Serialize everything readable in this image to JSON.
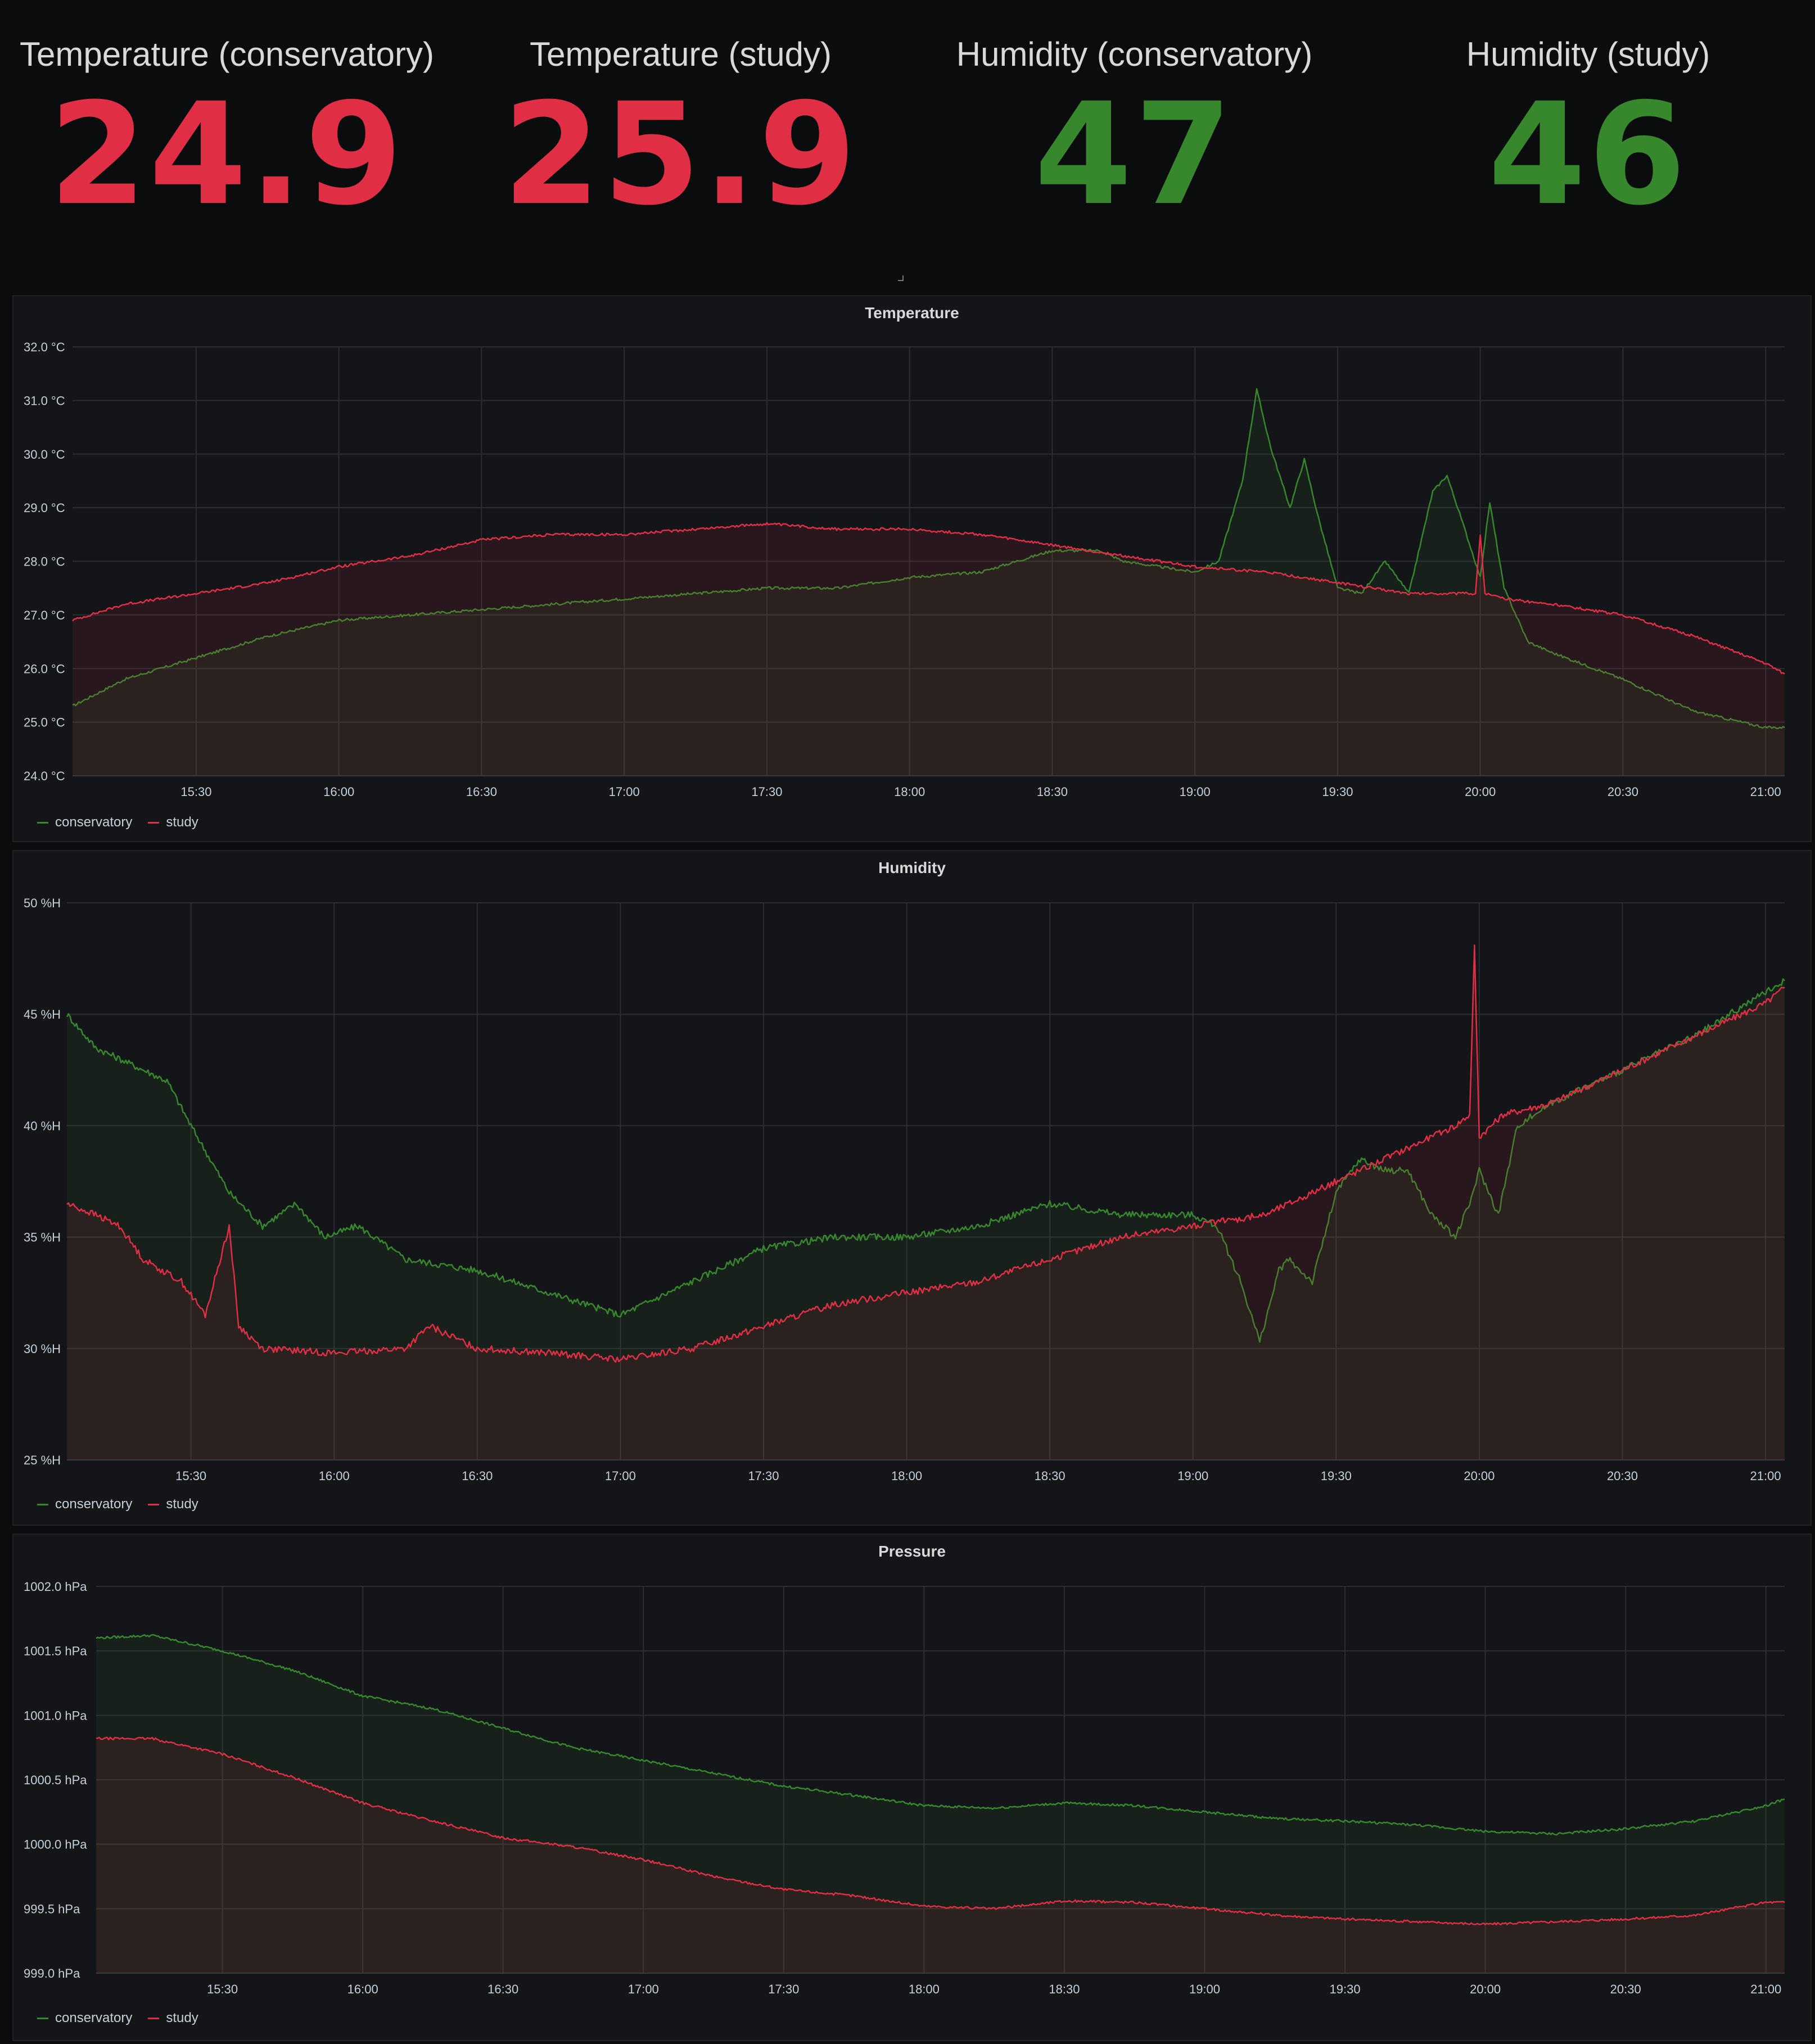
{
  "stats": [
    {
      "title": "Temperature (conservatory)",
      "value": "24.9",
      "color": "#e02f44"
    },
    {
      "title": "Temperature (study)",
      "value": "25.9",
      "color": "#e02f44"
    },
    {
      "title": "Humidity (conservatory)",
      "value": "47",
      "color": "#37872d"
    },
    {
      "title": "Humidity (study)",
      "value": "46",
      "color": "#37872d"
    }
  ],
  "colors": {
    "conservatory": "#37872d",
    "study": "#e02f44"
  },
  "legend": {
    "conservatory": "conservatory",
    "study": "study"
  },
  "chart_data": [
    {
      "type": "area",
      "title": "Temperature",
      "unit": "°C",
      "ylim": [
        24,
        32
      ],
      "yticks": [
        "24.0 °C",
        "25.0 °C",
        "26.0 °C",
        "27.0 °C",
        "28.0 °C",
        "29.0 °C",
        "30.0 °C",
        "31.0 °C",
        "32.0 °C"
      ],
      "xlim": [
        "15:04",
        "21:04"
      ],
      "xticks": [
        "15:30",
        "16:00",
        "16:30",
        "17:00",
        "17:30",
        "18:00",
        "18:30",
        "19:00",
        "19:30",
        "20:00",
        "20:30",
        "21:00"
      ],
      "grid": true,
      "legend_position": "bottom-left",
      "series": [
        {
          "name": "conservatory",
          "color": "#37872d",
          "x": [
            "15:04",
            "15:15",
            "15:30",
            "15:45",
            "16:00",
            "16:15",
            "16:30",
            "16:45",
            "17:00",
            "17:15",
            "17:30",
            "17:45",
            "18:00",
            "18:15",
            "18:30",
            "18:40",
            "18:45",
            "19:00",
            "19:05",
            "19:10",
            "19:13",
            "19:16",
            "19:20",
            "19:23",
            "19:26",
            "19:30",
            "19:35",
            "19:40",
            "19:45",
            "19:50",
            "19:53",
            "19:56",
            "20:00",
            "20:02",
            "20:05",
            "20:10",
            "20:15",
            "20:30",
            "20:45",
            "21:00",
            "21:04"
          ],
          "y": [
            25.3,
            25.8,
            26.2,
            26.6,
            26.9,
            27.0,
            27.1,
            27.2,
            27.3,
            27.4,
            27.5,
            27.5,
            27.7,
            27.8,
            28.2,
            28.2,
            28.0,
            27.8,
            28.0,
            29.5,
            31.2,
            30.1,
            29.0,
            29.9,
            28.8,
            27.5,
            27.4,
            28.0,
            27.4,
            29.3,
            29.6,
            28.8,
            27.7,
            29.1,
            27.5,
            26.5,
            26.3,
            25.8,
            25.2,
            24.9,
            24.9
          ]
        },
        {
          "name": "study",
          "color": "#e02f44",
          "x": [
            "15:04",
            "15:15",
            "15:30",
            "15:45",
            "16:00",
            "16:15",
            "16:30",
            "16:45",
            "17:00",
            "17:15",
            "17:30",
            "17:45",
            "18:00",
            "18:15",
            "18:30",
            "18:45",
            "19:00",
            "19:15",
            "19:30",
            "19:45",
            "19:55",
            "19:59",
            "20:00",
            "20:01",
            "20:05",
            "20:15",
            "20:30",
            "20:45",
            "21:00",
            "21:04"
          ],
          "y": [
            26.9,
            27.2,
            27.4,
            27.6,
            27.9,
            28.1,
            28.4,
            28.5,
            28.5,
            28.6,
            28.7,
            28.6,
            28.6,
            28.5,
            28.3,
            28.1,
            27.9,
            27.8,
            27.6,
            27.4,
            27.4,
            27.4,
            28.5,
            27.4,
            27.3,
            27.2,
            27.0,
            26.6,
            26.1,
            25.9
          ]
        }
      ]
    },
    {
      "type": "area",
      "title": "Humidity",
      "unit": "%H",
      "ylim": [
        25,
        50
      ],
      "yticks": [
        "25 %H",
        "30 %H",
        "35 %H",
        "40 %H",
        "45 %H",
        "50 %H"
      ],
      "xlim": [
        "15:04",
        "21:04"
      ],
      "xticks": [
        "15:30",
        "16:00",
        "16:30",
        "17:00",
        "17:30",
        "18:00",
        "18:30",
        "19:00",
        "19:30",
        "20:00",
        "20:30",
        "21:00"
      ],
      "grid": true,
      "legend_position": "bottom-left",
      "series": [
        {
          "name": "conservatory",
          "color": "#37872d",
          "x": [
            "15:04",
            "15:10",
            "15:15",
            "15:25",
            "15:30",
            "15:38",
            "15:45",
            "15:52",
            "15:58",
            "16:05",
            "16:15",
            "16:30",
            "16:45",
            "17:00",
            "17:10",
            "17:20",
            "17:30",
            "17:45",
            "18:00",
            "18:15",
            "18:30",
            "18:45",
            "19:00",
            "19:05",
            "19:10",
            "19:14",
            "19:18",
            "19:20",
            "19:25",
            "19:30",
            "19:35",
            "19:40",
            "19:45",
            "19:50",
            "19:55",
            "19:58",
            "20:00",
            "20:04",
            "20:08",
            "20:15",
            "20:30",
            "20:45",
            "21:00",
            "21:04"
          ],
          "y": [
            45.0,
            43.5,
            43.0,
            42.0,
            40.0,
            37.0,
            35.5,
            36.5,
            35.0,
            35.5,
            34.0,
            33.5,
            32.5,
            31.5,
            32.5,
            33.5,
            34.5,
            35.0,
            35.0,
            35.5,
            36.5,
            36.0,
            36.0,
            35.5,
            33.0,
            30.3,
            33.5,
            34.0,
            33.0,
            37.0,
            38.5,
            38.0,
            38.0,
            36.0,
            35.0,
            36.5,
            38.0,
            36.0,
            40.0,
            41.0,
            42.5,
            44.0,
            46.0,
            46.5
          ]
        },
        {
          "name": "study",
          "color": "#e02f44",
          "x": [
            "15:04",
            "15:10",
            "15:15",
            "15:20",
            "15:28",
            "15:33",
            "15:38",
            "15:40",
            "15:45",
            "16:00",
            "16:15",
            "16:20",
            "16:30",
            "16:45",
            "17:00",
            "17:15",
            "17:30",
            "17:45",
            "18:00",
            "18:15",
            "18:30",
            "18:45",
            "19:00",
            "19:15",
            "19:30",
            "19:40",
            "19:45",
            "19:55",
            "19:58",
            "19:59",
            "20:00",
            "20:05",
            "20:15",
            "20:30",
            "20:45",
            "21:00",
            "21:04"
          ],
          "y": [
            36.5,
            36.0,
            35.5,
            34.0,
            33.0,
            31.5,
            35.5,
            31.0,
            30.0,
            29.8,
            30.0,
            31.0,
            30.0,
            29.8,
            29.5,
            30.0,
            31.0,
            32.0,
            32.5,
            33.0,
            34.0,
            35.0,
            35.5,
            36.0,
            37.5,
            38.5,
            39.0,
            40.0,
            40.5,
            48.0,
            39.5,
            40.5,
            41.0,
            42.5,
            44.0,
            45.5,
            46.2
          ]
        }
      ]
    },
    {
      "type": "area",
      "title": "Pressure",
      "unit": "hPa",
      "ylim": [
        999.0,
        1002.0
      ],
      "yticks": [
        "999.0 hPa",
        "999.5 hPa",
        "1000.0 hPa",
        "1000.5 hPa",
        "1001.0 hPa",
        "1001.5 hPa",
        "1002.0 hPa"
      ],
      "xlim": [
        "15:03",
        "21:04"
      ],
      "xticks": [
        "15:30",
        "16:00",
        "16:30",
        "17:00",
        "17:30",
        "18:00",
        "18:30",
        "19:00",
        "19:30",
        "20:00",
        "20:30",
        "21:00"
      ],
      "grid": true,
      "legend_position": "bottom-left",
      "series": [
        {
          "name": "conservatory",
          "color": "#37872d",
          "x": [
            "15:03",
            "15:15",
            "15:30",
            "15:45",
            "16:00",
            "16:15",
            "16:30",
            "16:45",
            "17:00",
            "17:15",
            "17:30",
            "17:45",
            "18:00",
            "18:15",
            "18:30",
            "18:45",
            "19:00",
            "19:15",
            "19:30",
            "19:45",
            "20:00",
            "20:15",
            "20:30",
            "20:45",
            "21:00",
            "21:04"
          ],
          "y": [
            1001.6,
            1001.62,
            1001.5,
            1001.35,
            1001.15,
            1001.05,
            1000.9,
            1000.75,
            1000.65,
            1000.55,
            1000.45,
            1000.38,
            1000.3,
            1000.28,
            1000.32,
            1000.3,
            1000.25,
            1000.2,
            1000.18,
            1000.15,
            1000.1,
            1000.08,
            1000.12,
            1000.18,
            1000.3,
            1000.35
          ]
        },
        {
          "name": "study",
          "color": "#e02f44",
          "x": [
            "15:03",
            "15:15",
            "15:30",
            "15:45",
            "16:00",
            "16:15",
            "16:30",
            "16:45",
            "17:00",
            "17:15",
            "17:30",
            "17:45",
            "18:00",
            "18:15",
            "18:30",
            "18:45",
            "19:00",
            "19:15",
            "19:30",
            "19:45",
            "20:00",
            "20:15",
            "20:30",
            "20:45",
            "21:00",
            "21:04"
          ],
          "y": [
            1000.82,
            1000.82,
            1000.7,
            1000.52,
            1000.32,
            1000.18,
            1000.05,
            999.98,
            999.88,
            999.75,
            999.65,
            999.6,
            999.52,
            999.5,
            999.56,
            999.55,
            999.5,
            999.45,
            999.42,
            999.4,
            999.38,
            999.4,
            999.42,
            999.45,
            999.55,
            999.55
          ]
        }
      ]
    }
  ]
}
